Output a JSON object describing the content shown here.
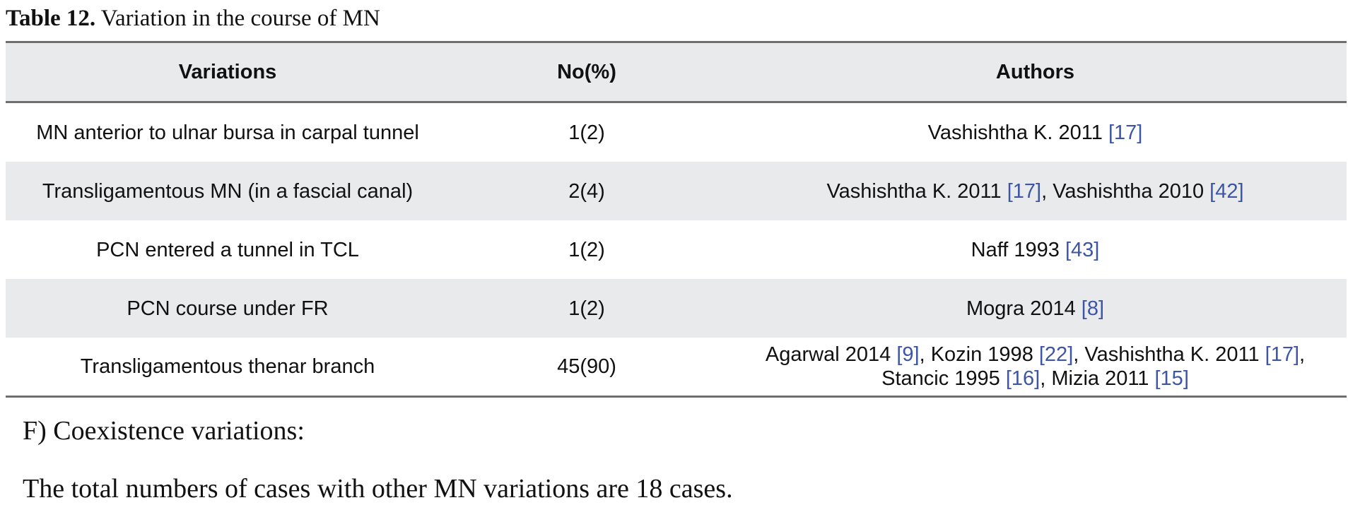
{
  "caption": {
    "label": "Table 12.",
    "text": " Variation in the course of MN"
  },
  "table": {
    "headers": [
      "Variations",
      "No(%)",
      "Authors"
    ],
    "rows": [
      {
        "variation": "MN anterior to ulnar bursa in carpal tunnel",
        "count": "1(2)",
        "authors": [
          {
            "text": "Vashishtha K. 2011 ",
            "cite": "[17]"
          }
        ]
      },
      {
        "variation": "Transligamentous MN (in a fascial canal)",
        "count": "2(4)",
        "authors": [
          {
            "text": "Vashishtha K. 2011 ",
            "cite": "[17]",
            "sep": ", "
          },
          {
            "text": "Vashishtha 2010 ",
            "cite": "[42]"
          }
        ]
      },
      {
        "variation": "PCN entered a tunnel in TCL",
        "count": "1(2)",
        "authors": [
          {
            "text": "Naff 1993 ",
            "cite": "[43]"
          }
        ]
      },
      {
        "variation": "PCN course under FR",
        "count": "1(2)",
        "authors": [
          {
            "text": "Mogra 2014 ",
            "cite": "[8]"
          }
        ]
      },
      {
        "variation": "Transligamentous thenar branch",
        "count": "45(90)",
        "authors": [
          {
            "text": "Agarwal 2014 ",
            "cite": "[9]",
            "sep": ", "
          },
          {
            "text": "Kozin 1998 ",
            "cite": "[22]",
            "sep": ", "
          },
          {
            "text": "Vashishtha K. 2011 ",
            "cite": "[17]",
            "sep": ","
          },
          {
            "text": "Stancic 1995 ",
            "cite": "[16]",
            "sep": ", "
          },
          {
            "text": "Mizia 2011 ",
            "cite": "[15]"
          }
        ]
      }
    ]
  },
  "section_heading": "F) Coexistence variations:",
  "body_text": "The total numbers of cases with other MN variations are 18 cases.",
  "colors": {
    "citation": "#3d55a6",
    "header_bg": "#e9eaec",
    "rule": "#6f6f6f"
  }
}
